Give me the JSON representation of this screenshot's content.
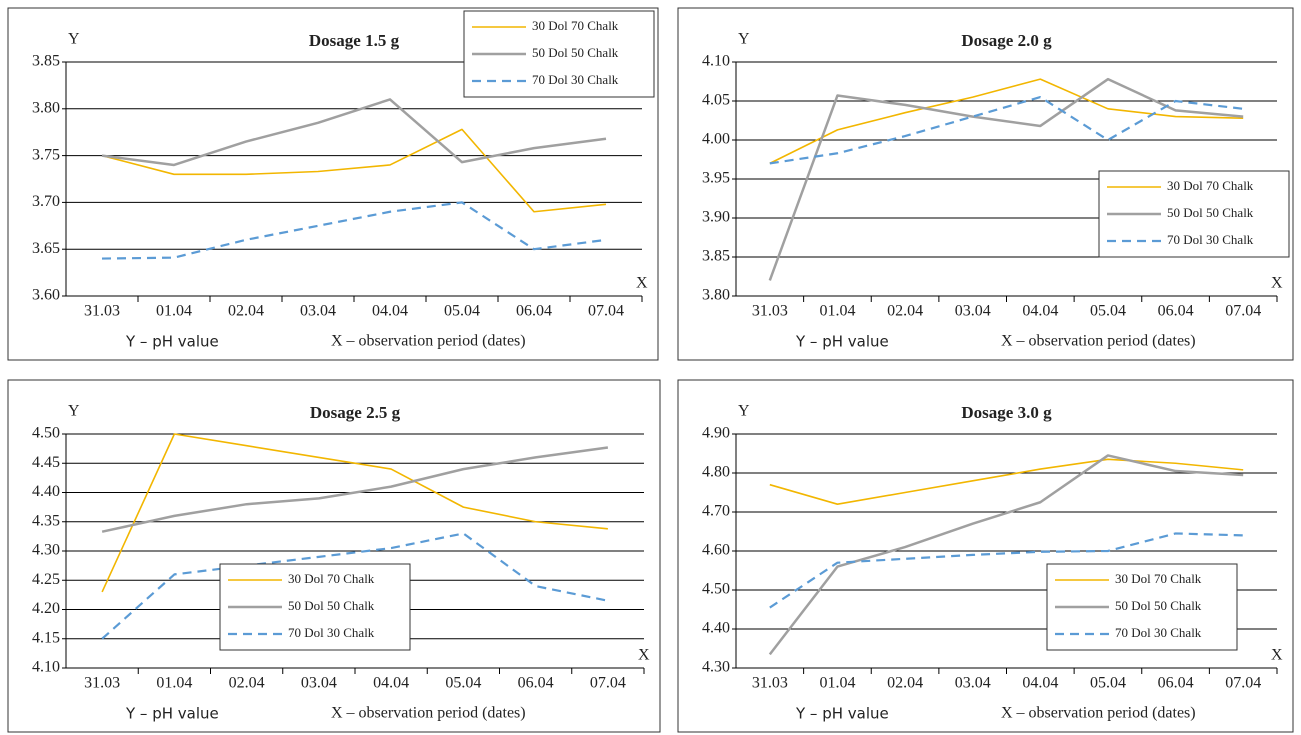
{
  "chart_data": [
    {
      "type": "line",
      "title": "Dosage 1.5 g",
      "y_axis_label": "Y",
      "x_axis_label": "X",
      "annotations": [
        "Y – pH value",
        "X – observation period (dates)"
      ],
      "categories": [
        "31.03",
        "01.04",
        "02.04",
        "03.04",
        "04.04",
        "05.04",
        "06.04",
        "07.04"
      ],
      "series": [
        {
          "name": "30 Dol 70 Chalk",
          "color": "#f2b600",
          "linestyle": "solid",
          "values": [
            3.75,
            3.73,
            3.73,
            3.733,
            3.74,
            3.778,
            3.69,
            3.698
          ]
        },
        {
          "name": "50 Dol 50 Chalk",
          "color": "#a0a0a0",
          "linestyle": "solid",
          "values": [
            3.75,
            3.74,
            3.765,
            3.785,
            3.81,
            3.743,
            3.758,
            3.768
          ]
        },
        {
          "name": "70 Dol 30 Chalk",
          "color": "#5b9bd5",
          "linestyle": "dashed",
          "values": [
            3.64,
            3.641,
            3.66,
            3.675,
            3.69,
            3.7,
            3.65,
            3.66
          ]
        }
      ],
      "ylim": [
        3.6,
        3.85
      ],
      "yticks": [
        {
          "value": 3.6,
          "label": "3.60"
        },
        {
          "value": 3.65,
          "label": "3.65"
        },
        {
          "value": 3.7,
          "label": "3.70"
        },
        {
          "value": 3.75,
          "label": "3.75"
        },
        {
          "value": 3.8,
          "label": "3.80"
        },
        {
          "value": 3.85,
          "label": "3.85"
        }
      ],
      "grid": true,
      "legend_loc": "upper right"
    },
    {
      "type": "line",
      "title": "Dosage 2.0 g",
      "y_axis_label": "Y",
      "x_axis_label": "X",
      "annotations": [
        "Y – pH value",
        "X – observation period (dates)"
      ],
      "categories": [
        "31.03",
        "01.04",
        "02.04",
        "03.04",
        "04.04",
        "05.04",
        "06.04",
        "07.04"
      ],
      "series": [
        {
          "name": "30 Dol 70 Chalk",
          "color": "#f2b600",
          "linestyle": "solid",
          "values": [
            3.97,
            4.013,
            4.035,
            4.055,
            4.078,
            4.04,
            4.03,
            4.028
          ]
        },
        {
          "name": "50 Dol 50 Chalk",
          "color": "#a0a0a0",
          "linestyle": "solid",
          "values": [
            3.82,
            4.057,
            4.045,
            4.03,
            4.018,
            4.078,
            4.038,
            4.03
          ]
        },
        {
          "name": "70 Dol 30 Chalk",
          "color": "#5b9bd5",
          "linestyle": "dashed",
          "values": [
            3.97,
            3.983,
            4.005,
            4.03,
            4.055,
            4.0,
            4.05,
            4.04
          ]
        }
      ],
      "ylim": [
        3.8,
        4.1
      ],
      "yticks": [
        {
          "value": 3.8,
          "label": "3.80"
        },
        3.85,
        {
          "value": 3.9,
          "label": "3.90"
        },
        3.95,
        {
          "value": 4.0,
          "label": "4.00"
        },
        4.05,
        {
          "value": 4.1,
          "label": "4.10"
        }
      ],
      "grid": true,
      "legend_loc": "center right"
    },
    {
      "type": "line",
      "title": "Dosage 2.5 g",
      "y_axis_label": "Y",
      "x_axis_label": "X",
      "annotations": [
        "Y – pH value",
        "X – observation period (dates)"
      ],
      "categories": [
        "31.03",
        "01.04",
        "02.04",
        "03.04",
        "04.04",
        "05.04",
        "06.04",
        "07.04"
      ],
      "series": [
        {
          "name": "30 Dol 70 Chalk",
          "color": "#f2b600",
          "linestyle": "solid",
          "values": [
            4.23,
            4.5,
            4.48,
            4.46,
            4.44,
            4.375,
            4.35,
            4.338
          ]
        },
        {
          "name": "50 Dol 50 Chalk",
          "color": "#a0a0a0",
          "linestyle": "solid",
          "values": [
            4.333,
            4.36,
            4.38,
            4.39,
            4.41,
            4.44,
            4.46,
            4.477
          ]
        },
        {
          "name": "70 Dol 30 Chalk",
          "color": "#5b9bd5",
          "linestyle": "dashed",
          "values": [
            4.15,
            4.26,
            4.275,
            4.29,
            4.305,
            4.33,
            4.24,
            4.215
          ]
        }
      ],
      "ylim": [
        4.1,
        4.5
      ],
      "yticks": [
        {
          "value": 4.1,
          "label": "4.10"
        },
        4.15,
        {
          "value": 4.2,
          "label": "4.20"
        },
        4.25,
        {
          "value": 4.3,
          "label": "4.30"
        },
        4.35,
        {
          "value": 4.4,
          "label": "4.40"
        },
        4.45,
        {
          "value": 4.5,
          "label": "4.50"
        }
      ],
      "grid": true,
      "legend_loc": "lower center"
    },
    {
      "type": "line",
      "title": "Dosage 3.0 g",
      "y_axis_label": "Y",
      "x_axis_label": "X",
      "annotations": [
        "Y – pH value",
        "X – observation period (dates)"
      ],
      "categories": [
        "31.03",
        "01.04",
        "02.04",
        "03.04",
        "04.04",
        "05.04",
        "06.04",
        "07.04"
      ],
      "series": [
        {
          "name": "30 Dol 70 Chalk",
          "color": "#f2b600",
          "linestyle": "solid",
          "values": [
            4.77,
            4.72,
            4.75,
            4.78,
            4.81,
            4.835,
            4.825,
            4.808
          ]
        },
        {
          "name": "50 Dol 50 Chalk",
          "color": "#a0a0a0",
          "linestyle": "solid",
          "values": [
            4.335,
            4.56,
            4.61,
            4.67,
            4.725,
            4.845,
            4.805,
            4.795
          ]
        },
        {
          "name": "70 Dol 30 Chalk",
          "color": "#5b9bd5",
          "linestyle": "dashed",
          "values": [
            4.455,
            4.57,
            4.58,
            4.59,
            4.598,
            4.6,
            4.645,
            4.64
          ]
        }
      ],
      "ylim": [
        4.3,
        4.9
      ],
      "yticks": [
        {
          "value": 4.3,
          "label": "4.30"
        },
        {
          "value": 4.4,
          "label": "4.40"
        },
        {
          "value": 4.5,
          "label": "4.50"
        },
        {
          "value": 4.6,
          "label": "4.60"
        },
        {
          "value": 4.7,
          "label": "4.70"
        },
        {
          "value": 4.8,
          "label": "4.80"
        },
        {
          "value": 4.9,
          "label": "4.90"
        }
      ],
      "grid": true,
      "legend_loc": "lower right"
    }
  ]
}
